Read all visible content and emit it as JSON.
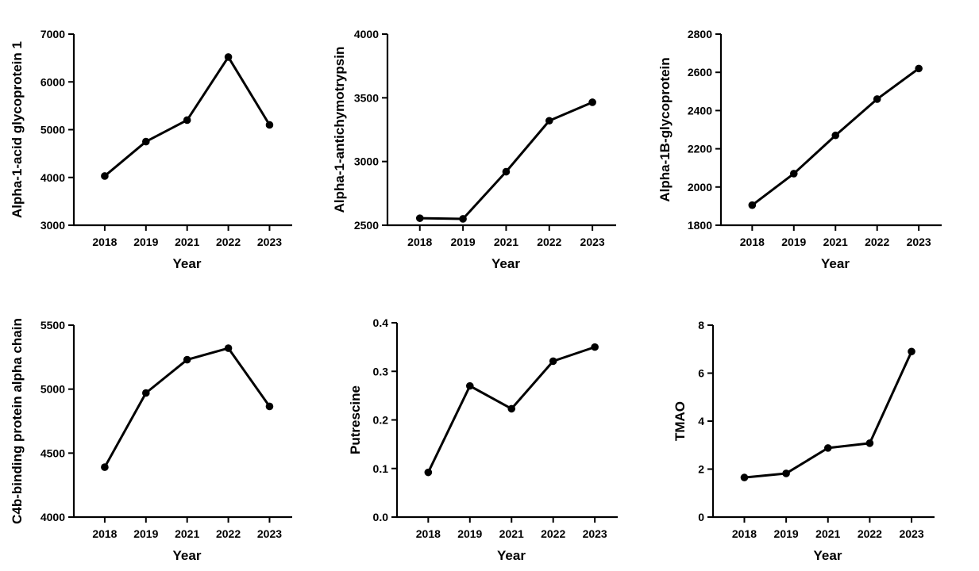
{
  "colors": {
    "line": "#000000",
    "point": "#000000",
    "axis": "#000000",
    "background": "#ffffff"
  },
  "chart_data": [
    {
      "type": "line",
      "categories": [
        "2018",
        "2019",
        "2021",
        "2022",
        "2023"
      ],
      "values": [
        4030,
        4750,
        5200,
        6520,
        5100
      ],
      "xlabel": "Year",
      "ylabel": "Alpha-1-acid glycoprotein 1",
      "ylim": [
        3000,
        7000
      ],
      "yticks": [
        "3000",
        "4000",
        "5000",
        "6000",
        "7000"
      ],
      "grid": false
    },
    {
      "type": "line",
      "categories": [
        "2018",
        "2019",
        "2021",
        "2022",
        "2023"
      ],
      "values": [
        2555,
        2550,
        2920,
        3320,
        3465
      ],
      "xlabel": "Year",
      "ylabel": "Alpha-1-antichymotrypsin",
      "ylim": [
        2500,
        4000
      ],
      "yticks": [
        "2500",
        "3000",
        "3500",
        "4000"
      ],
      "grid": false
    },
    {
      "type": "line",
      "categories": [
        "2018",
        "2019",
        "2021",
        "2022",
        "2023"
      ],
      "values": [
        1905,
        2070,
        2270,
        2460,
        2620
      ],
      "xlabel": "Year",
      "ylabel": "Alpha-1B-glycoprotein",
      "ylim": [
        1800,
        2800
      ],
      "yticks": [
        "1800",
        "2000",
        "2200",
        "2400",
        "2600",
        "2800"
      ],
      "grid": false
    },
    {
      "type": "line",
      "categories": [
        "2018",
        "2019",
        "2021",
        "2022",
        "2023"
      ],
      "values": [
        4390,
        4970,
        5230,
        5320,
        4865
      ],
      "xlabel": "Year",
      "ylabel": "C4b-binding protein alpha chain",
      "ylim": [
        4000,
        5500
      ],
      "yticks": [
        "4000",
        "4500",
        "5000",
        "5500"
      ],
      "grid": false
    },
    {
      "type": "line",
      "categories": [
        "2018",
        "2019",
        "2021",
        "2022",
        "2023"
      ],
      "values": [
        0.092,
        0.27,
        0.223,
        0.321,
        0.35
      ],
      "xlabel": "Year",
      "ylabel": "Putrescine",
      "ylim": [
        0,
        0.4
      ],
      "yticks": [
        "0.0",
        "0.1",
        "0.2",
        "0.3",
        "0.4"
      ],
      "grid": false
    },
    {
      "type": "line",
      "categories": [
        "2018",
        "2019",
        "2021",
        "2022",
        "2023"
      ],
      "values": [
        1.65,
        1.82,
        2.88,
        3.08,
        6.9
      ],
      "xlabel": "Year",
      "ylabel": "TMAO",
      "ylim": [
        0,
        8
      ],
      "yticks": [
        "0",
        "2",
        "4",
        "6",
        "8"
      ],
      "grid": false
    }
  ]
}
